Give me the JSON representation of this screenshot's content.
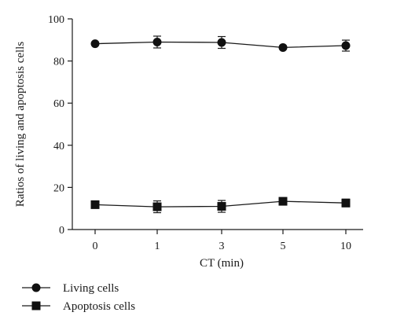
{
  "chart_data": {
    "type": "line",
    "title": "",
    "xlabel": "CT (min)",
    "ylabel": "Ratios of living and apoptosis cells",
    "categories": [
      "0",
      "1",
      "3",
      "5",
      "10"
    ],
    "ylim": [
      0,
      100
    ],
    "yticks": [
      0,
      20,
      40,
      60,
      80,
      100
    ],
    "grid": false,
    "legend_position": "bottom-left",
    "series": [
      {
        "name": "Living cells",
        "marker": "circle",
        "values": [
          88.2,
          89.0,
          88.8,
          86.4,
          87.3
        ],
        "errors": [
          0.6,
          2.8,
          2.8,
          0.8,
          2.6
        ]
      },
      {
        "name": "Apoptosis cells",
        "marker": "square",
        "values": [
          11.8,
          10.8,
          11.0,
          13.4,
          12.6
        ],
        "errors": [
          0.6,
          2.8,
          2.8,
          0.8,
          1.8
        ]
      }
    ],
    "colors": {
      "line": "#1a1a1a",
      "marker": "#111111"
    }
  }
}
